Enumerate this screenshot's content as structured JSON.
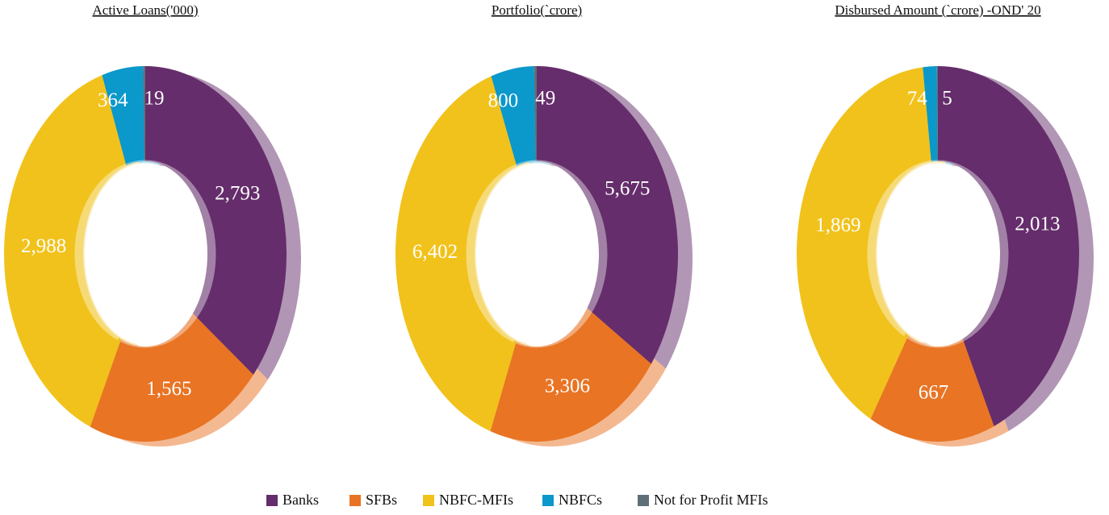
{
  "legend": {
    "labels": [
      "Banks",
      "SFBs",
      "NBFC-MFIs",
      "NBFCs",
      "Not for Profit MFIs"
    ],
    "colors": [
      "#652d6b",
      "#e87424",
      "#f1c21b",
      "#0b98cb",
      "#5f6f78"
    ]
  },
  "chart_data": [
    {
      "type": "pie",
      "title": "Active Loans('000)",
      "values": [
        2793,
        1565,
        2988,
        364,
        19
      ],
      "value_labels": [
        "2,793",
        "1,565",
        "2,988",
        "364",
        "19"
      ]
    },
    {
      "type": "pie",
      "title": "Portfolio(`crore)",
      "values": [
        5675,
        3306,
        6402,
        800,
        49
      ],
      "value_labels": [
        "5,675",
        "3,306",
        "6,402",
        "800",
        "49"
      ]
    },
    {
      "type": "pie",
      "title": "Disbursed Amount (`crore) -OND' 20",
      "values": [
        2013,
        667,
        1869,
        74,
        5
      ],
      "value_labels": [
        "2,013",
        "667",
        "1,869",
        "74",
        "5"
      ]
    }
  ]
}
